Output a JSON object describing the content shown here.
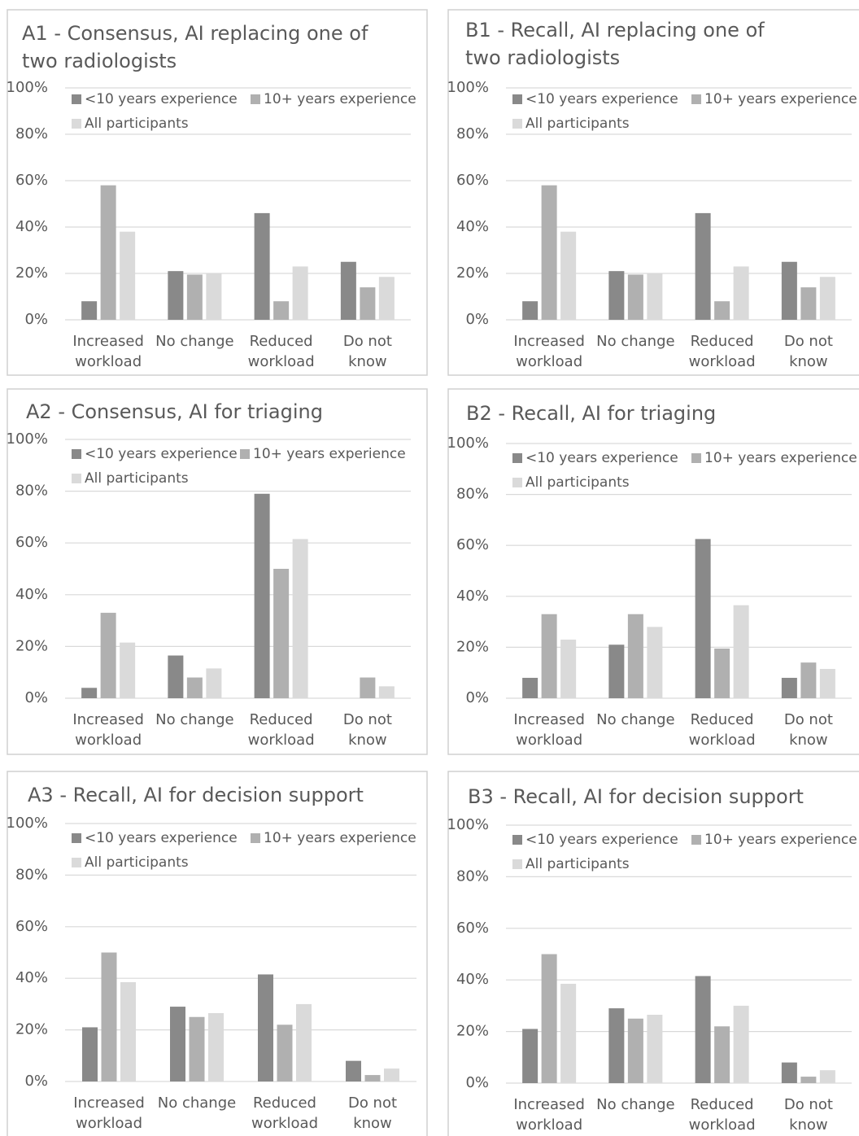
{
  "chart_data": [
    {
      "type": "bar",
      "title": "A1 - Consensus, AI replacing one of\ntwo radiologists",
      "categories": [
        "Increased\nworkload",
        "No change",
        "Reduced\nworkload",
        "Do not\nknow"
      ],
      "series": [
        {
          "name": "<10 years experience",
          "color": "#898989",
          "values": [
            8,
            21,
            46,
            25
          ]
        },
        {
          "name": "10+ years experience",
          "color": "#b0b0b0",
          "values": [
            58,
            19.5,
            8,
            14
          ]
        },
        {
          "name": "All participants",
          "color": "#dadada",
          "values": [
            38,
            20,
            23,
            18.5
          ]
        }
      ],
      "ylim": [
        0,
        100
      ],
      "yticks": [
        {
          "value": 0,
          "label": "0%"
        },
        {
          "value": 20,
          "label": "20%"
        },
        {
          "value": 40,
          "label": "40%"
        },
        {
          "value": 60,
          "label": "60%"
        },
        {
          "value": 80,
          "label": "80%"
        },
        {
          "value": 100,
          "label": "100%"
        }
      ],
      "grid": true
    },
    {
      "type": "bar",
      "title": "B1 - Recall, AI replacing one of\ntwo radiologists",
      "categories": [
        "Increased\nworkload",
        "No change",
        "Reduced\nworkload",
        "Do not\nknow"
      ],
      "series": [
        {
          "name": "<10 years experience",
          "color": "#898989",
          "values": [
            8,
            21,
            46,
            25
          ]
        },
        {
          "name": "10+ years experience",
          "color": "#b0b0b0",
          "values": [
            58,
            19.5,
            8,
            14
          ]
        },
        {
          "name": "All participants",
          "color": "#dadada",
          "values": [
            38,
            20,
            23,
            18.5
          ]
        }
      ],
      "ylim": [
        0,
        100
      ],
      "yticks": [
        {
          "value": 0,
          "label": "0%"
        },
        {
          "value": 20,
          "label": "20%"
        },
        {
          "value": 40,
          "label": "40%"
        },
        {
          "value": 60,
          "label": "60%"
        },
        {
          "value": 80,
          "label": "80%"
        },
        {
          "value": 100,
          "label": "100%"
        }
      ],
      "grid": true
    },
    {
      "type": "bar",
      "title": "A2 - Consensus, AI for triaging",
      "categories": [
        "Increased\nworkload",
        "No change",
        "Reduced\nworkload",
        "Do not\nknow"
      ],
      "series": [
        {
          "name": "<10 years experience",
          "color": "#898989",
          "values": [
            4,
            16.5,
            79,
            0
          ]
        },
        {
          "name": "10+ years experience",
          "color": "#b0b0b0",
          "values": [
            33,
            8,
            50,
            8
          ]
        },
        {
          "name": "All participants",
          "color": "#dadada",
          "values": [
            21.5,
            11.5,
            61.5,
            4.6
          ]
        }
      ],
      "ylim": [
        0,
        100
      ],
      "yticks": [
        {
          "value": 0,
          "label": "0%"
        },
        {
          "value": 20,
          "label": "20%"
        },
        {
          "value": 40,
          "label": "40%"
        },
        {
          "value": 60,
          "label": "60%"
        },
        {
          "value": 80,
          "label": "80%"
        },
        {
          "value": 100,
          "label": "100%"
        }
      ],
      "grid": true
    },
    {
      "type": "bar",
      "title": "B2 - Recall, AI for triaging",
      "categories": [
        "Increased\nworkload",
        "No change",
        "Reduced\nworkload",
        "Do not\nknow"
      ],
      "series": [
        {
          "name": "<10 years experience",
          "color": "#898989",
          "values": [
            8,
            21,
            62.5,
            8
          ]
        },
        {
          "name": "10+ years experience",
          "color": "#b0b0b0",
          "values": [
            33,
            33,
            19.5,
            14
          ]
        },
        {
          "name": "All participants",
          "color": "#dadada",
          "values": [
            23,
            28,
            36.5,
            11.5
          ]
        }
      ],
      "ylim": [
        0,
        100
      ],
      "yticks": [
        {
          "value": 0,
          "label": "0%"
        },
        {
          "value": 20,
          "label": "20%"
        },
        {
          "value": 40,
          "label": "40%"
        },
        {
          "value": 60,
          "label": "60%"
        },
        {
          "value": 80,
          "label": "80%"
        },
        {
          "value": 100,
          "label": "100%"
        }
      ],
      "grid": true
    },
    {
      "type": "bar",
      "title": "A3 - Recall, AI for decision support",
      "categories": [
        "Increased\nworkload",
        "No change",
        "Reduced\nworkload",
        "Do not\nknow"
      ],
      "series": [
        {
          "name": "<10 years experience",
          "color": "#898989",
          "values": [
            21,
            29,
            41.5,
            8
          ]
        },
        {
          "name": "10+ years experience",
          "color": "#b0b0b0",
          "values": [
            50,
            25,
            22,
            2.5
          ]
        },
        {
          "name": "All participants",
          "color": "#dadada",
          "values": [
            38.5,
            26.5,
            30,
            5
          ]
        }
      ],
      "ylim": [
        0,
        100
      ],
      "yticks": [
        {
          "value": 0,
          "label": "0%"
        },
        {
          "value": 20,
          "label": "20%"
        },
        {
          "value": 40,
          "label": "40%"
        },
        {
          "value": 60,
          "label": "60%"
        },
        {
          "value": 80,
          "label": "80%"
        },
        {
          "value": 100,
          "label": "100%"
        }
      ],
      "grid": true
    },
    {
      "type": "bar",
      "title": "B3 - Recall, AI for decision support",
      "categories": [
        "Increased\nworkload",
        "No change",
        "Reduced\nworkload",
        "Do not\nknow"
      ],
      "series": [
        {
          "name": "<10 years experience",
          "color": "#898989",
          "values": [
            21,
            29,
            41.5,
            8
          ]
        },
        {
          "name": "10+ years experience",
          "color": "#b0b0b0",
          "values": [
            50,
            25,
            22,
            2.5
          ]
        },
        {
          "name": "All participants",
          "color": "#dadada",
          "values": [
            38.5,
            26.5,
            30,
            5
          ]
        }
      ],
      "ylim": [
        0,
        100
      ],
      "yticks": [
        {
          "value": 0,
          "label": "0%"
        },
        {
          "value": 20,
          "label": "20%"
        },
        {
          "value": 40,
          "label": "40%"
        },
        {
          "value": 60,
          "label": "60%"
        },
        {
          "value": 80,
          "label": "80%"
        },
        {
          "value": 100,
          "label": "100%"
        }
      ],
      "grid": true
    }
  ]
}
